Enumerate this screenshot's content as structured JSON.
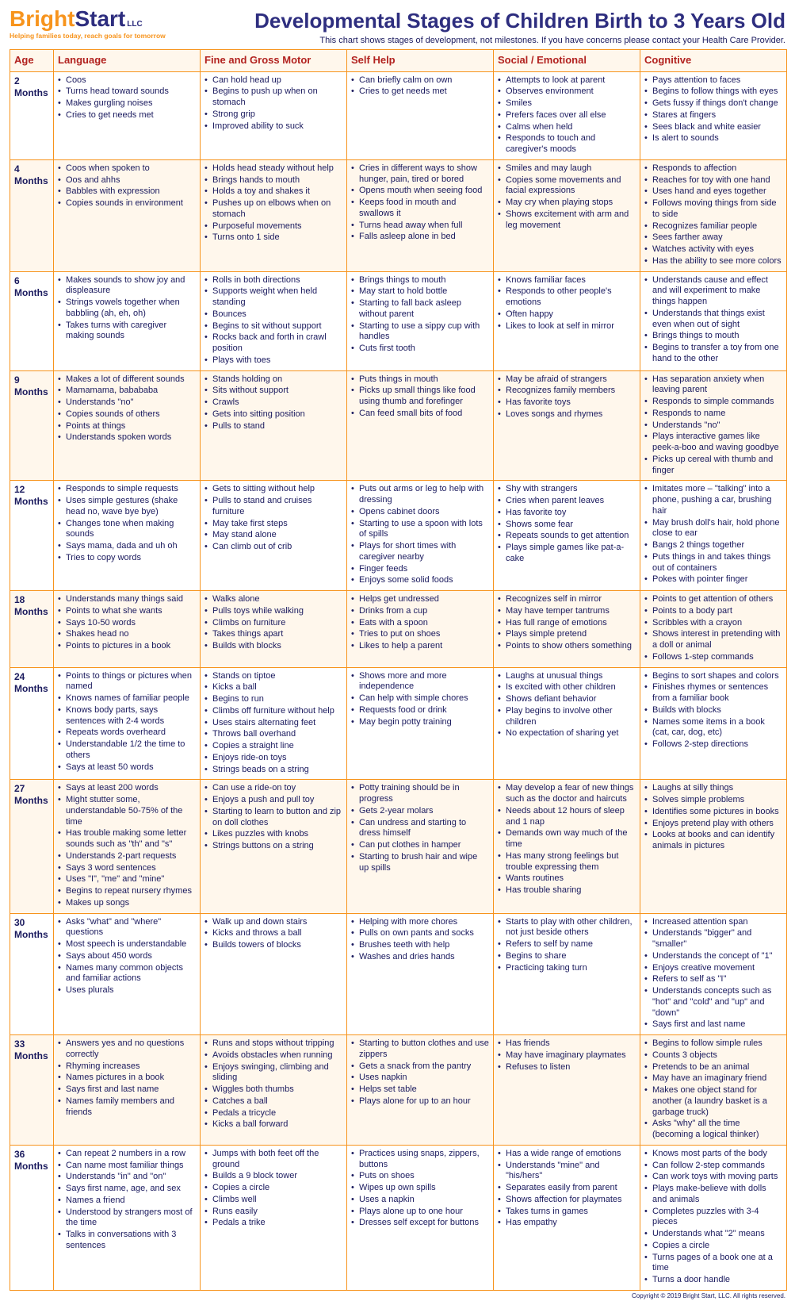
{
  "logo": {
    "bright": "Bright",
    "start": "Start",
    "llc": "LLC",
    "tagline": "Helping families today, reach goals for tomorrow"
  },
  "title": "Developmental Stages of Children Birth to 3 Years Old",
  "subtitle": "This chart shows stages of development, not milestones. If you have concerns please contact your Health Care Provider.",
  "columns": [
    "Age",
    "Language",
    "Fine and Gross Motor",
    "Self Help",
    "Social / Emotional",
    "Cognitive"
  ],
  "rows": [
    {
      "age": "2 Months",
      "language": [
        "Coos",
        "Turns head toward sounds",
        "Makes gurgling noises",
        "Cries to get needs met"
      ],
      "motor": [
        "Can hold head up",
        "Begins to push up when on stomach",
        "Strong grip",
        "Improved ability to suck"
      ],
      "selfhelp": [
        "Can briefly calm on own",
        "Cries to get needs met"
      ],
      "social": [
        "Attempts to look at parent",
        "Observes environment",
        "Smiles",
        "Prefers faces over all else",
        "Calms when held",
        "Responds to touch and caregiver's moods"
      ],
      "cognitive": [
        "Pays attention to faces",
        "Begins to follow things with eyes",
        "Gets fussy if things don't change",
        "Stares at fingers",
        "Sees black and white easier",
        "Is alert to sounds"
      ]
    },
    {
      "age": "4 Months",
      "language": [
        "Coos when spoken to",
        "Oos and ahhs",
        "Babbles with expression",
        "Copies sounds in environment"
      ],
      "motor": [
        "Holds head steady without help",
        "Brings hands to mouth",
        "Holds a toy and shakes it",
        "Pushes up on elbows when on stomach",
        "Purposeful movements",
        "Turns onto 1 side"
      ],
      "selfhelp": [
        "Cries in different ways to show hunger, pain, tired or bored",
        "Opens mouth when seeing food",
        "Keeps food in mouth and swallows it",
        "Turns head away when full",
        "Falls asleep alone in bed"
      ],
      "social": [
        "Smiles and may laugh",
        "Copies some movements and facial expressions",
        "May cry when playing stops",
        "Shows excitement with arm and leg movement"
      ],
      "cognitive": [
        "Responds to affection",
        "Reaches for toy with one hand",
        "Uses hand and eyes together",
        "Follows moving things from side to side",
        "Recognizes familiar people",
        "Sees farther away",
        "Watches activity with eyes",
        "Has the ability to see more colors"
      ]
    },
    {
      "age": "6 Months",
      "language": [
        "Makes sounds to show joy and displeasure",
        "Strings vowels together when babbling (ah, eh, oh)",
        "Takes turns with caregiver making sounds"
      ],
      "motor": [
        "Rolls in both directions",
        "Supports weight when held standing",
        "Bounces",
        "Begins to sit without support",
        "Rocks back and forth in crawl position",
        "Plays with toes"
      ],
      "selfhelp": [
        "Brings things to mouth",
        "May start to hold bottle",
        "Starting to fall back asleep without parent",
        "Starting to use a sippy cup with handles",
        "Cuts first tooth"
      ],
      "social": [
        "Knows familiar faces",
        "Responds to other people's emotions",
        "Often happy",
        "Likes to look at self in mirror"
      ],
      "cognitive": [
        "Understands cause and effect and will experiment to make things happen",
        "Understands that things exist even when out of sight",
        "Brings things to mouth",
        "Begins to transfer a toy from one hand to the other"
      ]
    },
    {
      "age": "9 Months",
      "language": [
        "Makes a lot of different sounds",
        "Mamamama, babababa",
        "Understands \"no\"",
        "Copies sounds of others",
        "Points at things",
        "Understands spoken words"
      ],
      "motor": [
        "Stands holding on",
        "Sits without support",
        "Crawls",
        "Gets into sitting position",
        "Pulls to stand"
      ],
      "selfhelp": [
        "Puts things in mouth",
        "Picks up small things like food using thumb and forefinger",
        "Can feed small bits of food"
      ],
      "social": [
        "May be afraid of strangers",
        "Recognizes family members",
        "Has favorite toys",
        "Loves songs and rhymes"
      ],
      "cognitive": [
        "Has separation anxiety when leaving parent",
        "Responds to simple commands",
        "Responds to name",
        "Understands \"no\"",
        "Plays interactive games like peek-a-boo and waving goodbye",
        "Picks up cereal with thumb and finger"
      ]
    },
    {
      "age": "12 Months",
      "language": [
        "Responds to simple requests",
        "Uses simple gestures (shake head no, wave bye bye)",
        "Changes tone when making sounds",
        "Says mama, dada and uh oh",
        "Tries to copy words"
      ],
      "motor": [
        "Gets to sitting without help",
        "Pulls to stand and cruises furniture",
        "May take first steps",
        "May stand alone",
        "Can climb out of crib"
      ],
      "selfhelp": [
        "Puts out arms or leg to help with dressing",
        "Opens cabinet doors",
        "Starting to use a spoon with lots of spills",
        "Plays for short times with caregiver nearby",
        "Finger feeds",
        "Enjoys some solid foods"
      ],
      "social": [
        "Shy with strangers",
        "Cries when parent leaves",
        "Has favorite toy",
        "Shows some fear",
        "Repeats sounds to get attention",
        "Plays simple games like pat-a-cake"
      ],
      "cognitive": [
        "Imitates more – \"talking\" into a phone, pushing a car, brushing hair",
        "May brush doll's hair, hold phone close to ear",
        "Bangs 2 things together",
        "Puts things in and takes things out of containers",
        "Pokes with pointer finger"
      ]
    },
    {
      "age": "18 Months",
      "language": [
        "Understands many things said",
        "Points to what she wants",
        "Says 10-50 words",
        "Shakes head no",
        "Points to pictures in a book"
      ],
      "motor": [
        "Walks alone",
        "Pulls toys while walking",
        "Climbs on furniture",
        "Takes things apart",
        "Builds with blocks"
      ],
      "selfhelp": [
        "Helps get undressed",
        "Drinks from a cup",
        "Eats with a spoon",
        "Tries to put on shoes",
        "Likes to help a parent"
      ],
      "social": [
        "Recognizes self in mirror",
        "May have temper tantrums",
        "Has full range of emotions",
        "Plays simple pretend",
        "Points to show others something"
      ],
      "cognitive": [
        "Points to get attention of others",
        "Points to a body part",
        "Scribbles with a crayon",
        "Shows interest in pretending with a doll or animal",
        "Follows 1-step commands"
      ]
    },
    {
      "age": "24 Months",
      "language": [
        "Points to things or pictures when named",
        "Knows names of familiar people",
        "Knows body parts, says sentences with 2-4 words",
        "Repeats words overheard",
        "Understandable 1/2 the time to others",
        "Says at least 50 words"
      ],
      "motor": [
        "Stands on tiptoe",
        "Kicks a ball",
        "Begins to run",
        "Climbs off furniture without help",
        "Uses stairs alternating feet",
        "Throws ball overhand",
        "Copies a straight line",
        "Enjoys ride-on toys",
        "Strings beads on a string"
      ],
      "selfhelp": [
        "Shows more and more independence",
        "Can help with simple chores",
        "Requests food or drink",
        "May begin potty training"
      ],
      "social": [
        "Laughs at unusual things",
        "Is excited with other children",
        "Shows defiant behavior",
        "Play begins to involve other children",
        "No expectation of sharing yet"
      ],
      "cognitive": [
        "Begins to sort shapes and colors",
        "Finishes rhymes or sentences from a familiar book",
        "Builds with blocks",
        "Names some items in a book (cat, car, dog, etc)",
        "Follows 2-step directions"
      ]
    },
    {
      "age": "27 Months",
      "language": [
        "Says at least 200 words",
        "Might stutter some, understandable 50-75% of the time",
        "Has trouble making some letter sounds such as \"th\" and \"s\"",
        "Understands 2-part requests",
        "Says 3 word sentences",
        "Uses \"I\", \"me\" and \"mine\"",
        "Begins to repeat nursery rhymes",
        "Makes up songs"
      ],
      "motor": [
        "Can use a ride-on toy",
        "Enjoys a push and pull toy",
        "Starting to learn to button and zip on doll clothes",
        "Likes puzzles with knobs",
        "Strings buttons on a string"
      ],
      "selfhelp": [
        "Potty training should be in progress",
        "Gets 2-year molars",
        "Can undress and starting to dress himself",
        "Can put clothes in hamper",
        "Starting to brush hair and wipe up spills"
      ],
      "social": [
        "May develop a fear of new things such as the doctor and haircuts",
        "Needs about 12 hours of sleep and 1 nap",
        "Demands own way much of the time",
        "Has many strong feelings but trouble expressing them",
        "Wants routines",
        "Has trouble sharing"
      ],
      "cognitive": [
        "Laughs at silly things",
        "Solves simple problems",
        "Identifies some pictures in books",
        "Enjoys pretend play with others",
        "Looks at books and can identify animals in pictures"
      ]
    },
    {
      "age": "30 Months",
      "language": [
        "Asks \"what\" and \"where\" questions",
        "Most speech is understandable",
        "Says about 450 words",
        "Names many common objects and familiar actions",
        "Uses plurals"
      ],
      "motor": [
        "Walk up and down stairs",
        "Kicks and throws a ball",
        "Builds towers of blocks"
      ],
      "selfhelp": [
        "Helping with more chores",
        "Pulls on own pants and socks",
        "Brushes teeth with help",
        "Washes and dries hands"
      ],
      "social": [
        "Starts to play with other children, not just beside others",
        "Refers to self by name",
        "Begins to share",
        "Practicing taking turn"
      ],
      "cognitive": [
        "Increased attention span",
        "Understands \"bigger\" and \"smaller\"",
        "Understands the concept of \"1\"",
        "Enjoys creative movement",
        "Refers to self as \"I\"",
        "Understands concepts such as \"hot\" and \"cold\" and \"up\" and \"down\"",
        "Says first and last name"
      ]
    },
    {
      "age": "33 Months",
      "language": [
        "Answers yes and no questions correctly",
        "Rhyming increases",
        "Names pictures in a book",
        "Says first and last name",
        "Names family members and friends"
      ],
      "motor": [
        "Runs and stops without tripping",
        "Avoids obstacles when running",
        "Enjoys swinging, climbing and sliding",
        "Wiggles both thumbs",
        "Catches a ball",
        "Pedals a tricycle",
        "Kicks a ball forward"
      ],
      "selfhelp": [
        "Starting to button clothes and use zippers",
        "Gets a snack from the pantry",
        "Uses napkin",
        "Helps set table",
        "Plays alone for up to an hour"
      ],
      "social": [
        "Has friends",
        "May have imaginary playmates",
        "Refuses to listen"
      ],
      "cognitive": [
        "Begins to follow simple rules",
        "Counts 3 objects",
        "Pretends to be an animal",
        "May have an imaginary friend",
        "Makes one object stand for another (a laundry basket is a garbage truck)",
        "Asks \"why\" all the time (becoming a logical thinker)"
      ]
    },
    {
      "age": "36 Months",
      "language": [
        "Can repeat 2 numbers in a row",
        "Can name most familiar things",
        "Understands \"in\" and \"on\"",
        "Says first name, age, and sex",
        "Names a friend",
        "Understood by strangers most of the time",
        "Talks in conversations with 3 sentences"
      ],
      "motor": [
        "Jumps with both feet off the ground",
        "Builds a 9 block tower",
        "Copies a circle",
        "Climbs well",
        "Runs easily",
        "Pedals a trike"
      ],
      "selfhelp": [
        "Practices using snaps, zippers, buttons",
        "Puts on shoes",
        "Wipes up own spills",
        "Uses a napkin",
        "Plays alone up to one hour",
        "Dresses self except for buttons"
      ],
      "social": [
        "Has a wide range of emotions",
        "Understands \"mine\" and \"his/hers\"",
        "Separates easily from parent",
        "Shows affection for playmates",
        "Takes turns in games",
        "Has empathy"
      ],
      "cognitive": [
        "Knows most parts of the body",
        "Can follow 2-step commands",
        "Can work toys with moving parts",
        "Plays make-believe with dolls and animals",
        "Completes puzzles with 3-4 pieces",
        "Understands what \"2\" means",
        "Copies a circle",
        "Turns pages of a book one at a time",
        "Turns a door handle"
      ]
    }
  ],
  "footer": "Copyright © 2019 Bright Start, LLC. All rights reserved."
}
